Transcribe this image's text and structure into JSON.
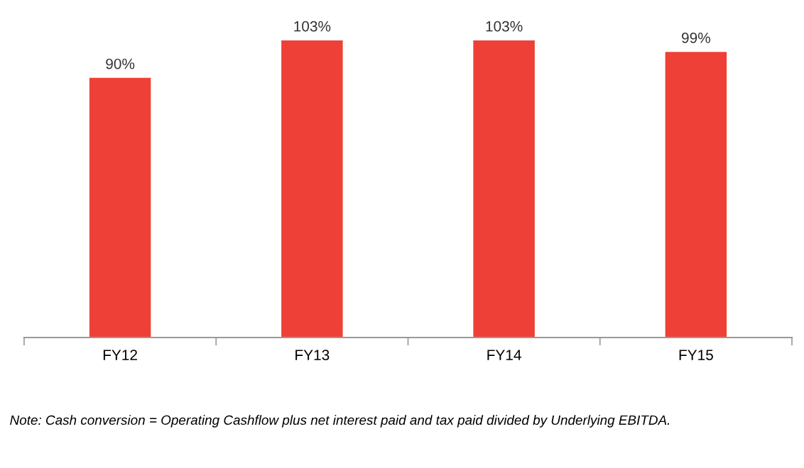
{
  "chart_data": {
    "type": "bar",
    "categories": [
      "FY12",
      "FY13",
      "FY14",
      "FY15"
    ],
    "values": [
      90,
      103,
      103,
      99
    ],
    "value_labels": [
      "90%",
      "103%",
      "103%",
      "99%"
    ],
    "color": "#ee4036",
    "grid": false,
    "annotations": [
      "Note: Cash conversion = Operating Cashflow plus net interest paid and tax paid divided by Underlying EBITDA."
    ]
  }
}
